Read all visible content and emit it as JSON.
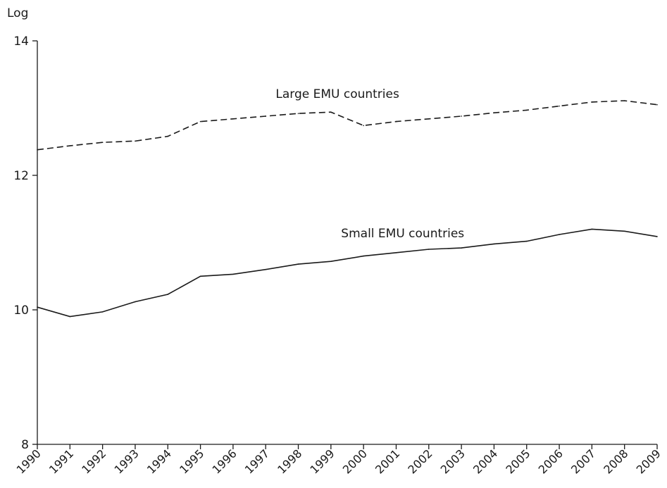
{
  "chart_data": {
    "type": "line",
    "ylabel": "Log",
    "xlabel": "",
    "title": "",
    "ylim": [
      8,
      14
    ],
    "yticks": [
      8,
      10,
      12,
      14
    ],
    "categories": [
      "1990",
      "1991",
      "1992",
      "1993",
      "1994",
      "1995",
      "1996",
      "1997",
      "1998",
      "1999",
      "2000",
      "2001",
      "2002",
      "2003",
      "2004",
      "2005",
      "2006",
      "2007",
      "2008",
      "2009"
    ],
    "grid": false,
    "series": [
      {
        "name": "Large EMU countries",
        "style": "dashed",
        "values": [
          12.38,
          12.44,
          12.49,
          12.51,
          12.58,
          12.8,
          12.84,
          12.88,
          12.92,
          12.94,
          12.74,
          12.8,
          12.84,
          12.88,
          12.93,
          12.97,
          13.03,
          13.09,
          13.11,
          13.05
        ]
      },
      {
        "name": "Small EMU countries",
        "style": "solid",
        "values": [
          10.04,
          9.9,
          9.97,
          10.12,
          10.23,
          10.5,
          10.53,
          10.6,
          10.68,
          10.72,
          10.8,
          10.85,
          10.9,
          10.92,
          10.98,
          11.02,
          11.12,
          11.2,
          11.17,
          11.09
        ]
      }
    ],
    "colors": {
      "line": "#1a1a1a",
      "background": "#ffffff"
    }
  }
}
